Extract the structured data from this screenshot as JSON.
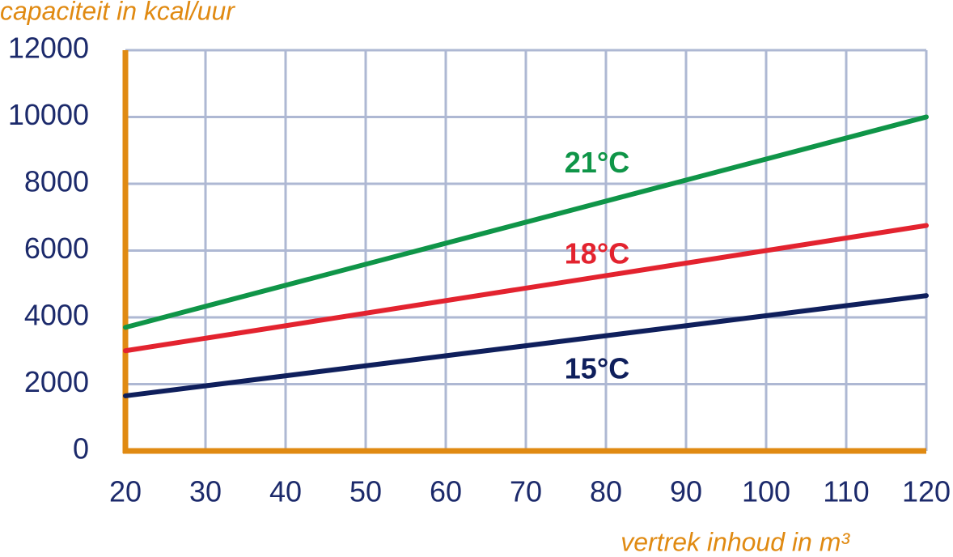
{
  "chart_data": {
    "type": "line",
    "y_label": "capaciteit in kcal/uur",
    "x_label": "vertrek inhoud in m³",
    "x": [
      20,
      120
    ],
    "series": [
      {
        "name": "21°C",
        "color": "#0f9548",
        "values": [
          3700,
          10000
        ]
      },
      {
        "name": "18°C",
        "color": "#e3232f",
        "values": [
          3000,
          6750
        ]
      },
      {
        "name": "15°C",
        "color": "#0f1f5c",
        "values": [
          1650,
          4650
        ]
      }
    ],
    "xlim": [
      20,
      120
    ],
    "xticks": [
      20,
      30,
      40,
      50,
      60,
      70,
      80,
      90,
      100,
      110,
      120
    ],
    "ylim": [
      0,
      12000
    ],
    "yticks": [
      0,
      2000,
      4000,
      6000,
      8000,
      10000,
      12000
    ],
    "grid": true,
    "axis_color": "#e08a12",
    "grid_color": "#aeb8d3"
  }
}
